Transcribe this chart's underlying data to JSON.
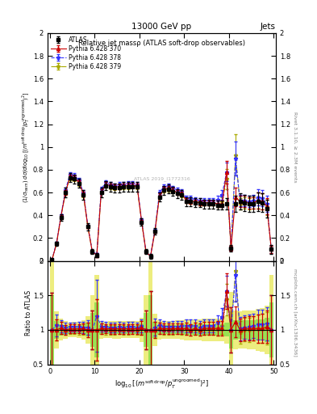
{
  "title": "13000 GeV pp",
  "title_right": "Jets",
  "plot_title": "Relative jet massρ (ATLAS soft-drop observables)",
  "xlabel": "log$_{10}$[(m$^{\\rm soft\\,drop}$/p$_T^{\\rm ungroomed}$)$^2$]",
  "ylabel_main": "(1/σ$_{resm}$) dσ/d log$_{10}$[(m$^{\\rm soft\\,drop}$/p$_T^{\\rm ungroomed}$)$^2$]",
  "ylabel_ratio": "Ratio to ATLAS",
  "ylabel_right_main": "Rivet 3.1.10, ≥ 2.3M events",
  "ylabel_right_ratio": "mcplots.cern.ch [arXiv:1306.3436]",
  "xlim": [
    -0.5,
    50.5
  ],
  "ylim_main": [
    0,
    2.0
  ],
  "ylim_ratio": [
    0.5,
    2.0
  ],
  "x_ticks": [
    0,
    10,
    20,
    30,
    40,
    50
  ],
  "x_tick_labels": [
    "0",
    "10",
    "20",
    "30",
    "40",
    "50"
  ],
  "atlas_x": [
    0.5,
    1.5,
    2.5,
    3.5,
    4.5,
    5.5,
    6.5,
    7.5,
    8.5,
    9.5,
    10.5,
    11.5,
    12.5,
    13.5,
    14.5,
    15.5,
    16.5,
    17.5,
    18.5,
    19.5,
    20.5,
    21.5,
    22.5,
    23.5,
    24.5,
    25.5,
    26.5,
    27.5,
    28.5,
    29.5,
    30.5,
    31.5,
    32.5,
    33.5,
    34.5,
    35.5,
    36.5,
    37.5,
    38.5,
    39.5,
    40.5,
    41.5,
    42.5,
    43.5,
    44.5,
    45.5,
    46.5,
    47.5,
    48.5,
    49.5
  ],
  "atlas_y": [
    0.01,
    0.15,
    0.38,
    0.6,
    0.73,
    0.72,
    0.68,
    0.58,
    0.3,
    0.08,
    0.05,
    0.6,
    0.66,
    0.65,
    0.64,
    0.64,
    0.65,
    0.65,
    0.65,
    0.65,
    0.34,
    0.08,
    0.04,
    0.26,
    0.56,
    0.62,
    0.63,
    0.61,
    0.59,
    0.58,
    0.52,
    0.52,
    0.51,
    0.51,
    0.5,
    0.5,
    0.5,
    0.49,
    0.49,
    0.5,
    0.11,
    0.5,
    0.52,
    0.51,
    0.5,
    0.5,
    0.52,
    0.51,
    0.46,
    0.1
  ],
  "atlas_yerr": [
    0.005,
    0.02,
    0.03,
    0.04,
    0.04,
    0.04,
    0.04,
    0.04,
    0.03,
    0.02,
    0.02,
    0.04,
    0.04,
    0.04,
    0.04,
    0.04,
    0.04,
    0.04,
    0.04,
    0.04,
    0.03,
    0.02,
    0.02,
    0.03,
    0.04,
    0.04,
    0.04,
    0.04,
    0.04,
    0.04,
    0.04,
    0.04,
    0.04,
    0.04,
    0.04,
    0.04,
    0.04,
    0.04,
    0.04,
    0.05,
    0.03,
    0.07,
    0.07,
    0.07,
    0.07,
    0.07,
    0.08,
    0.08,
    0.08,
    0.04
  ],
  "py370_x": [
    0.5,
    1.5,
    2.5,
    3.5,
    4.5,
    5.5,
    6.5,
    7.5,
    8.5,
    9.5,
    10.5,
    11.5,
    12.5,
    13.5,
    14.5,
    15.5,
    16.5,
    17.5,
    18.5,
    19.5,
    20.5,
    21.5,
    22.5,
    23.5,
    24.5,
    25.5,
    26.5,
    27.5,
    28.5,
    29.5,
    30.5,
    31.5,
    32.5,
    33.5,
    34.5,
    35.5,
    36.5,
    37.5,
    38.5,
    39.5,
    40.5,
    41.5,
    42.5,
    43.5,
    44.5,
    45.5,
    46.5,
    47.5,
    48.5,
    49.5
  ],
  "py370_y": [
    0.01,
    0.15,
    0.39,
    0.6,
    0.74,
    0.73,
    0.69,
    0.59,
    0.3,
    0.08,
    0.05,
    0.61,
    0.67,
    0.66,
    0.65,
    0.65,
    0.66,
    0.66,
    0.66,
    0.66,
    0.35,
    0.08,
    0.04,
    0.26,
    0.57,
    0.63,
    0.64,
    0.62,
    0.6,
    0.59,
    0.53,
    0.52,
    0.52,
    0.51,
    0.51,
    0.51,
    0.51,
    0.5,
    0.5,
    0.78,
    0.11,
    0.56,
    0.52,
    0.52,
    0.51,
    0.51,
    0.53,
    0.52,
    0.48,
    0.1
  ],
  "py370_yerr": [
    0.002,
    0.01,
    0.01,
    0.02,
    0.02,
    0.02,
    0.02,
    0.02,
    0.01,
    0.01,
    0.01,
    0.02,
    0.02,
    0.02,
    0.02,
    0.02,
    0.02,
    0.02,
    0.02,
    0.02,
    0.01,
    0.01,
    0.01,
    0.01,
    0.02,
    0.02,
    0.02,
    0.02,
    0.02,
    0.02,
    0.02,
    0.02,
    0.02,
    0.02,
    0.02,
    0.02,
    0.02,
    0.03,
    0.03,
    0.1,
    0.02,
    0.08,
    0.05,
    0.05,
    0.05,
    0.05,
    0.07,
    0.07,
    0.07,
    0.03
  ],
  "py378_x": [
    0.5,
    1.5,
    2.5,
    3.5,
    4.5,
    5.5,
    6.5,
    7.5,
    8.5,
    9.5,
    10.5,
    11.5,
    12.5,
    13.5,
    14.5,
    15.5,
    16.5,
    17.5,
    18.5,
    19.5,
    20.5,
    21.5,
    22.5,
    23.5,
    24.5,
    25.5,
    26.5,
    27.5,
    28.5,
    29.5,
    30.5,
    31.5,
    32.5,
    33.5,
    34.5,
    35.5,
    36.5,
    37.5,
    38.5,
    39.5,
    40.5,
    41.5,
    42.5,
    43.5,
    44.5,
    45.5,
    46.5,
    47.5,
    48.5,
    49.5
  ],
  "py378_y": [
    0.01,
    0.16,
    0.4,
    0.62,
    0.76,
    0.75,
    0.71,
    0.6,
    0.31,
    0.08,
    0.06,
    0.63,
    0.69,
    0.67,
    0.66,
    0.67,
    0.67,
    0.68,
    0.68,
    0.67,
    0.36,
    0.08,
    0.04,
    0.27,
    0.6,
    0.65,
    0.66,
    0.64,
    0.62,
    0.61,
    0.55,
    0.55,
    0.54,
    0.53,
    0.53,
    0.53,
    0.53,
    0.54,
    0.58,
    0.78,
    0.11,
    0.9,
    0.53,
    0.53,
    0.52,
    0.53,
    0.56,
    0.55,
    0.5,
    0.1
  ],
  "py378_yerr": [
    0.002,
    0.01,
    0.01,
    0.02,
    0.02,
    0.02,
    0.02,
    0.02,
    0.01,
    0.01,
    0.01,
    0.02,
    0.02,
    0.02,
    0.02,
    0.02,
    0.02,
    0.02,
    0.02,
    0.02,
    0.01,
    0.01,
    0.01,
    0.01,
    0.02,
    0.02,
    0.02,
    0.02,
    0.02,
    0.02,
    0.02,
    0.02,
    0.02,
    0.02,
    0.02,
    0.02,
    0.02,
    0.03,
    0.04,
    0.08,
    0.02,
    0.15,
    0.05,
    0.05,
    0.05,
    0.05,
    0.07,
    0.07,
    0.07,
    0.03
  ],
  "py379_x": [
    0.5,
    1.5,
    2.5,
    3.5,
    4.5,
    5.5,
    6.5,
    7.5,
    8.5,
    9.5,
    10.5,
    11.5,
    12.5,
    13.5,
    14.5,
    15.5,
    16.5,
    17.5,
    18.5,
    19.5,
    20.5,
    21.5,
    22.5,
    23.5,
    24.5,
    25.5,
    26.5,
    27.5,
    28.5,
    29.5,
    30.5,
    31.5,
    32.5,
    33.5,
    34.5,
    35.5,
    36.5,
    37.5,
    38.5,
    39.5,
    40.5,
    41.5,
    42.5,
    43.5,
    44.5,
    45.5,
    46.5,
    47.5,
    48.5,
    49.5
  ],
  "py379_y": [
    0.01,
    0.15,
    0.39,
    0.6,
    0.73,
    0.72,
    0.68,
    0.58,
    0.3,
    0.08,
    0.05,
    0.61,
    0.66,
    0.65,
    0.64,
    0.65,
    0.65,
    0.65,
    0.66,
    0.65,
    0.35,
    0.08,
    0.04,
    0.26,
    0.57,
    0.62,
    0.63,
    0.61,
    0.6,
    0.58,
    0.53,
    0.52,
    0.52,
    0.51,
    0.51,
    0.51,
    0.51,
    0.5,
    0.52,
    0.72,
    0.11,
    0.93,
    0.5,
    0.51,
    0.5,
    0.51,
    0.53,
    0.52,
    0.47,
    0.1
  ],
  "py379_yerr": [
    0.002,
    0.01,
    0.01,
    0.02,
    0.02,
    0.02,
    0.02,
    0.02,
    0.01,
    0.01,
    0.01,
    0.02,
    0.02,
    0.02,
    0.02,
    0.02,
    0.02,
    0.02,
    0.02,
    0.02,
    0.01,
    0.01,
    0.01,
    0.01,
    0.02,
    0.02,
    0.02,
    0.02,
    0.02,
    0.02,
    0.02,
    0.02,
    0.02,
    0.02,
    0.02,
    0.02,
    0.02,
    0.03,
    0.04,
    0.09,
    0.02,
    0.18,
    0.05,
    0.05,
    0.05,
    0.05,
    0.07,
    0.07,
    0.07,
    0.03
  ],
  "color_atlas": "#000000",
  "color_py370": "#cc0000",
  "color_py378": "#3333ff",
  "color_py379": "#aaaa00",
  "bg_green": "#00cc00",
  "bg_yellow": "#dddd00",
  "bg_green_alpha": 0.35,
  "bg_yellow_alpha": 0.5,
  "watermark": "ATLAS 2019_I1772316",
  "label_py370": "Pythia 6.428 370",
  "label_py378": "Pythia 6.428 378",
  "label_py379": "Pythia 6.428 379",
  "label_atlas": "ATLAS"
}
